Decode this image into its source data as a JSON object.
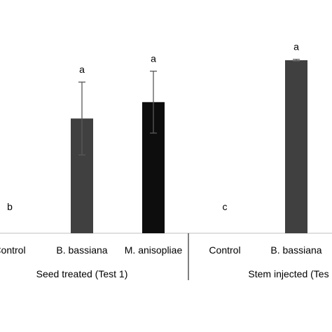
{
  "chart_data": {
    "type": "bar",
    "ylim": [
      0,
      100
    ],
    "groups": [
      {
        "label": "Seed treated (Test 1)",
        "bars": [
          {
            "category": "Control",
            "value": 0,
            "error": 0,
            "letter": "b",
            "color": "#ffffff"
          },
          {
            "category": "B. bassiana",
            "value": 63,
            "error": 20,
            "letter": "a",
            "color": "#404040"
          },
          {
            "category": "M. anisopliae",
            "value": 72,
            "error": 17,
            "letter": "a",
            "color": "#0d0d0d"
          }
        ]
      },
      {
        "label": "Stem injected (Tes",
        "bars": [
          {
            "category": "Control",
            "value": 0,
            "error": 0,
            "letter": "c",
            "color": "#ffffff"
          },
          {
            "category": "B. bassiana",
            "value": 95,
            "error": 0.5,
            "letter": "a",
            "color": "#404040"
          }
        ]
      }
    ]
  }
}
